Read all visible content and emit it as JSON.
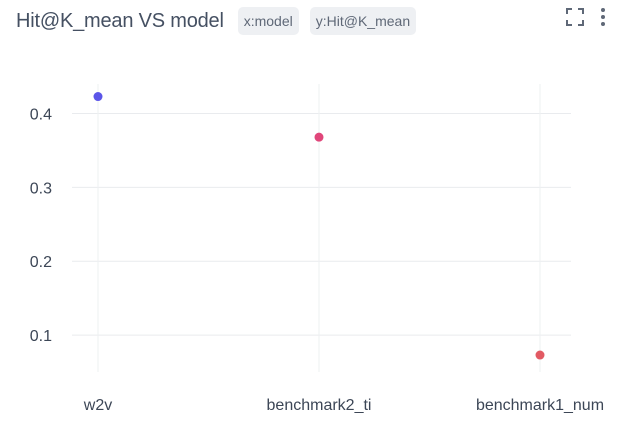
{
  "header": {
    "title": "Hit@K_mean VS model",
    "chips": [
      "x:model",
      "y:Hit@K_mean"
    ],
    "icons": [
      "fullscreen-icon",
      "more-vertical-icon"
    ]
  },
  "chart_data": {
    "type": "scatter",
    "title": "Hit@K_mean VS model",
    "xlabel": "",
    "ylabel": "",
    "categories": [
      "w2v",
      "benchmark2_ti",
      "benchmark1_num"
    ],
    "values": [
      0.423,
      0.368,
      0.073
    ],
    "colors": [
      "#5b55e8",
      "#e0467a",
      "#e25a63"
    ],
    "yticks": [
      0.1,
      0.2,
      0.3,
      0.4
    ],
    "ylim": [
      0.05,
      0.44
    ],
    "grid": true,
    "legend": "none"
  }
}
